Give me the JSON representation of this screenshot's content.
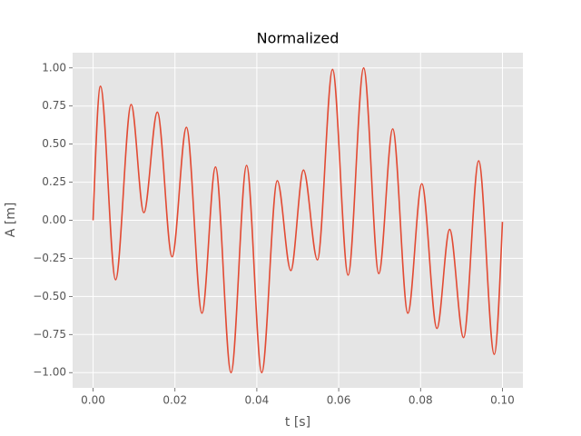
{
  "chart_data": {
    "type": "line",
    "title": "Normalized",
    "x_label": "t [s]",
    "y_label": "A [m]",
    "x": [
      0,
      0.0018,
      0.0055,
      0.0093,
      0.0124,
      0.0157,
      0.0193,
      0.0228,
      0.0266,
      0.0299,
      0.0337,
      0.0375,
      0.0412,
      0.045,
      0.0483,
      0.0514,
      0.0548,
      0.0585,
      0.0623,
      0.0661,
      0.0698,
      0.0732,
      0.0769,
      0.0803,
      0.084,
      0.0871,
      0.0905,
      0.0942,
      0.098,
      0.1
    ],
    "series": [
      {
        "name": "A",
        "color": "#E24A33",
        "values": [
          0,
          0.88,
          -0.39,
          0.76,
          0.05,
          0.71,
          -0.24,
          0.61,
          -0.61,
          0.35,
          -1.0,
          0.36,
          -1.0,
          0.26,
          -0.33,
          0.33,
          -0.26,
          0.99,
          -0.36,
          1.0,
          -0.35,
          0.6,
          -0.61,
          0.24,
          -0.71,
          -0.06,
          -0.77,
          0.39,
          -0.88,
          -0.01
        ]
      }
    ],
    "xlim": [
      -0.005,
      0.105
    ],
    "ylim": [
      -1.1,
      1.1
    ],
    "xticks": [
      {
        "value": 0,
        "label": "0.00"
      },
      {
        "value": 0.02,
        "label": "0.02"
      },
      {
        "value": 0.04,
        "label": "0.04"
      },
      {
        "value": 0.06,
        "label": "0.06"
      },
      {
        "value": 0.08,
        "label": "0.08"
      },
      {
        "value": 0.1,
        "label": "0.10"
      }
    ],
    "yticks": [
      {
        "value": -1,
        "label": "−1.00"
      },
      {
        "value": -0.75,
        "label": "−0.75"
      },
      {
        "value": -0.5,
        "label": "−0.50"
      },
      {
        "value": -0.25,
        "label": "−0.25"
      },
      {
        "value": 0,
        "label": "0.00"
      },
      {
        "value": 0.25,
        "label": "0.25"
      },
      {
        "value": 0.5,
        "label": "0.50"
      },
      {
        "value": 0.75,
        "label": "0.75"
      },
      {
        "value": 1,
        "label": "1.00"
      }
    ],
    "grid": true
  }
}
